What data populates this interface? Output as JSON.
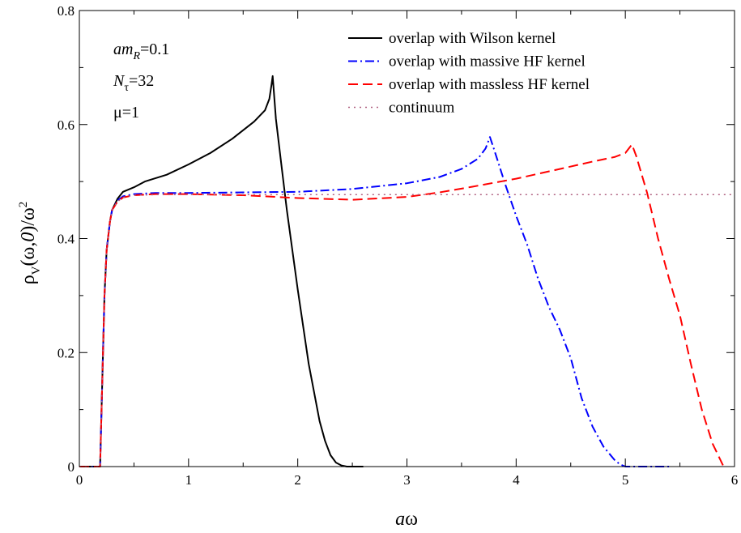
{
  "chart_data": {
    "type": "line",
    "xlabel": "aω",
    "ylabel": "ρV(ω,0)/ω²",
    "xlim": [
      0,
      6
    ],
    "ylim": [
      0,
      0.8
    ],
    "xticks": [
      "0",
      "1",
      "2",
      "3",
      "4",
      "5",
      "6"
    ],
    "yticks": [
      "0",
      "0.2",
      "0.4",
      "0.6",
      "0.8"
    ],
    "grid": false,
    "legend_position": "top-right",
    "parameters": {
      "line1_main": "am",
      "line1_sub": "R",
      "line1_value": "=0.1",
      "line2_main": "N",
      "line2_sub": "τ",
      "line2_value": "=32",
      "line3": "μ=1"
    },
    "series": [
      {
        "name": "overlap with Wilson kernel",
        "color": "#000000",
        "dash": "solid",
        "x": [
          0,
          0.19,
          0.21,
          0.23,
          0.25,
          0.28,
          0.3,
          0.35,
          0.4,
          0.5,
          0.6,
          0.8,
          1.0,
          1.2,
          1.4,
          1.6,
          1.7,
          1.74,
          1.76,
          1.77,
          1.8,
          1.85,
          1.9,
          2.0,
          2.1,
          2.2,
          2.25,
          2.3,
          2.35,
          2.4,
          2.45,
          2.5,
          2.6
        ],
        "y": [
          0,
          0,
          0.15,
          0.3,
          0.38,
          0.43,
          0.45,
          0.47,
          0.482,
          0.49,
          0.5,
          0.512,
          0.53,
          0.55,
          0.575,
          0.605,
          0.625,
          0.645,
          0.67,
          0.685,
          0.61,
          0.53,
          0.45,
          0.31,
          0.18,
          0.08,
          0.045,
          0.02,
          0.007,
          0.002,
          0,
          0,
          0
        ]
      },
      {
        "name": "overlap with massive HF kernel",
        "color": "#0000ff",
        "dash": "dashdot",
        "x": [
          0,
          0.19,
          0.21,
          0.23,
          0.25,
          0.28,
          0.3,
          0.35,
          0.4,
          0.5,
          0.7,
          1.0,
          1.5,
          2.0,
          2.5,
          3.0,
          3.3,
          3.5,
          3.65,
          3.72,
          3.76,
          3.8,
          3.9,
          4.0,
          4.1,
          4.2,
          4.3,
          4.4,
          4.5,
          4.6,
          4.7,
          4.8,
          4.9,
          4.95,
          5.0,
          5.05,
          5.2,
          5.4
        ],
        "y": [
          0,
          0,
          0.15,
          0.3,
          0.38,
          0.43,
          0.45,
          0.467,
          0.474,
          0.478,
          0.48,
          0.48,
          0.481,
          0.482,
          0.487,
          0.497,
          0.508,
          0.522,
          0.54,
          0.558,
          0.578,
          0.555,
          0.495,
          0.44,
          0.39,
          0.33,
          0.28,
          0.24,
          0.19,
          0.12,
          0.07,
          0.035,
          0.012,
          0.004,
          0,
          0,
          0,
          0
        ]
      },
      {
        "name": "overlap with massless HF kernel",
        "color": "#ff0000",
        "dash": "dashed",
        "x": [
          0,
          0.19,
          0.21,
          0.23,
          0.25,
          0.28,
          0.3,
          0.35,
          0.4,
          0.5,
          0.7,
          1.0,
          1.5,
          2.0,
          2.5,
          3.0,
          3.3,
          3.6,
          4.0,
          4.4,
          4.7,
          4.9,
          5.0,
          5.04,
          5.06,
          5.1,
          5.2,
          5.3,
          5.4,
          5.5,
          5.6,
          5.7,
          5.8,
          5.9
        ],
        "y": [
          0,
          0,
          0.15,
          0.3,
          0.38,
          0.43,
          0.45,
          0.465,
          0.472,
          0.476,
          0.478,
          0.478,
          0.476,
          0.471,
          0.468,
          0.473,
          0.481,
          0.491,
          0.505,
          0.522,
          0.535,
          0.543,
          0.55,
          0.56,
          0.565,
          0.545,
          0.48,
          0.4,
          0.33,
          0.265,
          0.18,
          0.1,
          0.04,
          0
        ]
      },
      {
        "name": "continuum",
        "color": "#b06080",
        "dash": "dotted",
        "x": [
          0,
          0.19,
          0.21,
          0.23,
          0.25,
          0.28,
          0.3,
          0.35,
          0.4,
          0.5,
          0.7,
          1.0,
          6.0
        ],
        "y": [
          0,
          0,
          0.15,
          0.3,
          0.38,
          0.43,
          0.45,
          0.465,
          0.472,
          0.476,
          0.477,
          0.477,
          0.477
        ]
      }
    ]
  }
}
